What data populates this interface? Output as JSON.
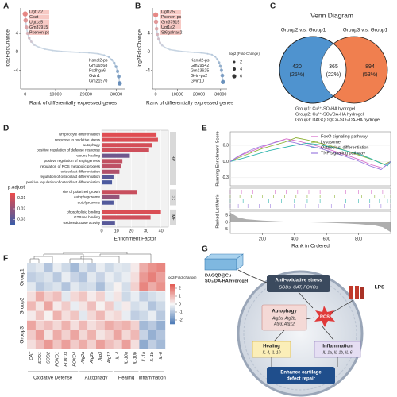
{
  "panel_labels": [
    "A",
    "B",
    "C",
    "D",
    "E",
    "F",
    "G"
  ],
  "chart_data": [
    {
      "type": "scatter",
      "x_label": "Rank of differentially expressed genes",
      "y_label": "log2FoldChange",
      "x": [
        0,
        150,
        400,
        800,
        1300,
        2000,
        3000,
        4500,
        6500,
        9000,
        12000,
        15000,
        18000,
        21000,
        24000,
        26000,
        27500,
        28500,
        29300,
        29900,
        30400,
        30800,
        31100
      ],
      "values": [
        8.2,
        6.8,
        5.3,
        4.0,
        3.0,
        2.2,
        1.5,
        1.0,
        0.6,
        0.3,
        0.1,
        0,
        -0.1,
        -0.2,
        -0.4,
        -0.7,
        -1.1,
        -1.7,
        -2.4,
        -3.2,
        -4.2,
        -5.3,
        -6.8
      ],
      "xlim": [
        -1500,
        33000
      ],
      "ylim": [
        -8,
        9.5
      ],
      "xticks": [
        0,
        10000,
        20000,
        30000
      ],
      "yticks": [
        -4,
        0,
        4
      ],
      "color_high": "#e8605a",
      "color_mid": "#c9d6e3",
      "color_low": "#3d6fa8",
      "labels_top": [
        "Ugt1a2",
        "Gcat",
        "Ugt1a5",
        "Gm37915",
        "Psenen-ps"
      ],
      "labels_bottom": [
        "Kansl2-ps",
        "Gm16568",
        "Pcdhga6",
        "Gvin1",
        "Gm21970"
      ]
    },
    {
      "type": "scatter",
      "x_label": "Rank of differentially expressed genes",
      "y_label": "log2FoldChange",
      "x": [
        0,
        150,
        400,
        800,
        1300,
        2000,
        3000,
        4500,
        6500,
        9000,
        12000,
        15000,
        18000,
        21000,
        24000,
        26000,
        27500,
        28500,
        29300,
        29900,
        30400,
        30800,
        31100
      ],
      "values": [
        8.0,
        6.5,
        5.0,
        3.8,
        2.8,
        2.0,
        1.4,
        0.9,
        0.5,
        0.3,
        0.1,
        0,
        -0.1,
        -0.2,
        -0.4,
        -0.6,
        -1.0,
        -1.6,
        -2.3,
        -3.1,
        -4.0,
        -5.1,
        -6.5
      ],
      "xlim": [
        -1500,
        33000
      ],
      "ylim": [
        -8,
        9.5
      ],
      "xticks": [
        0,
        10000,
        20000,
        30000
      ],
      "yticks": [
        -4,
        0,
        4
      ],
      "color_high": "#e8605a",
      "color_mid": "#c9d6e3",
      "color_low": "#3d6fa8",
      "labels_top": [
        "Ugt1a5",
        "Psenen-ps",
        "Gm37915",
        "Ugt1a2",
        "St6galnac2"
      ],
      "labels_bottom": [
        "Kansl2-ps",
        "Gm29542",
        "Gm13625",
        "Gvin-ps2",
        "Gvin10"
      ],
      "size_legend": {
        "title": "log2 (Fold-Change)",
        "sizes": [
          2,
          4,
          6
        ]
      }
    },
    {
      "type": "bar",
      "orientation": "horizontal",
      "x_label": "Enrichment Factor",
      "xlim": [
        0,
        45
      ],
      "xticks": [
        0,
        10,
        20,
        30,
        40
      ],
      "legend_title": "p.adjust",
      "padjust_lim": [
        0.005,
        0.035
      ],
      "legend_ticks": [
        0.01,
        0.02,
        0.03
      ],
      "color_low_p": "#ec4c4c",
      "color_high_p": "#3a5ca8",
      "highlight_color": "#b3262b",
      "strip_color": "#d9d9d9",
      "groups": [
        {
          "name": "BP",
          "items": [
            {
              "label": "lymphocyte differentiation",
              "value": 37,
              "padjust": 0.007,
              "highlight": false
            },
            {
              "label": "response to oxidative stress",
              "value": 38,
              "padjust": 0.008,
              "highlight": true
            },
            {
              "label": "autophagy",
              "value": 34,
              "padjust": 0.009,
              "highlight": true
            },
            {
              "label": "positive regulation of defense response",
              "value": 32,
              "padjust": 0.01,
              "highlight": false
            },
            {
              "label": "wound healing",
              "value": 19,
              "padjust": 0.026,
              "highlight": true
            },
            {
              "label": "positive regulation of angiogenesis",
              "value": 14,
              "padjust": 0.012,
              "highlight": false
            },
            {
              "label": "regulation of ROS metabolic process",
              "value": 13,
              "padjust": 0.013,
              "highlight": true
            },
            {
              "label": "osteoclast differentiation",
              "value": 12,
              "padjust": 0.015,
              "highlight": true
            },
            {
              "label": "regulation of osteoclast differentiation",
              "value": 8,
              "padjust": 0.03,
              "highlight": false
            },
            {
              "label": "positive regulation of osteoblast differentiation",
              "value": 7,
              "padjust": 0.032,
              "highlight": true
            }
          ]
        },
        {
          "name": "CC",
          "items": [
            {
              "label": "site of polarized growth",
              "value": 24,
              "padjust": 0.011,
              "highlight": false
            },
            {
              "label": "autophagosome",
              "value": 12,
              "padjust": 0.02,
              "highlight": false
            },
            {
              "label": "autolysosome",
              "value": 8,
              "padjust": 0.031,
              "highlight": false
            }
          ]
        },
        {
          "name": "MF",
          "items": [
            {
              "label": "phospholipid binding",
              "value": 40,
              "padjust": 0.008,
              "highlight": false
            },
            {
              "label": "GTPase binding",
              "value": 33,
              "padjust": 0.01,
              "highlight": false
            },
            {
              "label": "oxidoreductase activity",
              "value": 9,
              "padjust": 0.03,
              "highlight": true
            }
          ]
        }
      ]
    },
    {
      "type": "line",
      "y_label": "Running Enrichment Score",
      "y2_label": "Ranked List Metric",
      "x_label": "Rank in Ordered",
      "xlim": [
        0,
        1000
      ],
      "xticks": [
        200,
        400,
        600,
        800
      ],
      "ylim": [
        -0.45,
        0.55
      ],
      "yticks": [
        -0.3,
        {
          "value": 0,
          "label": "0.0"
        },
        0.3
      ],
      "series": [
        {
          "name": "FoxO signaling pathway",
          "color": "#d66bc9",
          "x": [
            0,
            70,
            140,
            210,
            280,
            350,
            420,
            490,
            560,
            640,
            720,
            800,
            880,
            950,
            1000
          ],
          "values": [
            0,
            0.12,
            0.2,
            0.28,
            0.36,
            0.42,
            0.38,
            0.33,
            0.27,
            0.2,
            0.12,
            0.04,
            -0.06,
            -0.12,
            0
          ]
        },
        {
          "name": "Lysosome",
          "color": "#8fb339",
          "x": [
            0,
            60,
            130,
            200,
            270,
            340,
            410,
            480,
            560,
            650,
            740,
            820,
            900,
            960,
            1000
          ],
          "values": [
            0,
            0.08,
            0.16,
            0.24,
            0.3,
            0.36,
            0.44,
            0.4,
            0.34,
            0.27,
            0.18,
            0.1,
            0.02,
            -0.05,
            0
          ]
        },
        {
          "name": "Osteoclast differentiation",
          "color": "#2fb5ad",
          "x": [
            0,
            80,
            160,
            240,
            320,
            400,
            480,
            560,
            640,
            720,
            800,
            870,
            930,
            980,
            1000
          ],
          "values": [
            0,
            0.06,
            0.13,
            0.2,
            0.25,
            0.3,
            0.34,
            0.31,
            0.26,
            0.2,
            0.14,
            0.06,
            -0.02,
            -0.08,
            0
          ]
        },
        {
          "name": "TNF signaling pathway",
          "color": "#9d7de0",
          "x": [
            0,
            50,
            110,
            180,
            250,
            330,
            400,
            470,
            550,
            630,
            710,
            790,
            870,
            940,
            1000
          ],
          "values": [
            0,
            0.1,
            0.19,
            0.27,
            0.33,
            0.39,
            0.35,
            0.3,
            0.25,
            0.18,
            0.1,
            0.02,
            -0.08,
            -0.15,
            0
          ]
        }
      ],
      "metric": {
        "x": [
          0,
          50,
          100,
          200,
          300,
          400,
          500,
          600,
          700,
          800,
          900,
          950,
          1000
        ],
        "values": [
          7,
          3.5,
          2.2,
          1.3,
          0.7,
          0.3,
          0,
          -0.3,
          -0.7,
          -1.3,
          -2.2,
          -3.5,
          -7
        ],
        "ylim": [
          -8,
          8
        ],
        "yticks": [
          -5,
          0,
          5
        ],
        "color": "#8c8c8c"
      }
    },
    {
      "type": "heatmap",
      "legend_title": "log2(Fold-change)",
      "clim": [
        -2.5,
        2.5
      ],
      "cticks": [
        -2,
        -1,
        0,
        1,
        2
      ],
      "color_low": "#4a78b5",
      "color_mid": "#f7f7f7",
      "color_high": "#e25a52",
      "columns": [
        {
          "group": "Oxidative Defense",
          "genes": [
            "CAT",
            "SOD1",
            "SOD2",
            "FOXO1",
            "FOXO3",
            "FOXO4"
          ]
        },
        {
          "group": "Autophagy",
          "genes": [
            "Atg2a",
            "Atg2b",
            "Atg3",
            "Atg12"
          ]
        },
        {
          "group": "Healing",
          "genes": [
            "IL-4",
            "IL-10a",
            "IL-10b"
          ]
        },
        {
          "group": "Inflammation",
          "genes": [
            "IL-1a",
            "IL-1b",
            "IL-6"
          ]
        }
      ],
      "rows": [
        {
          "name": "Group1",
          "values": [
            [
              -0.5,
              -0.3,
              -1,
              -0.2,
              -0.6,
              -1.2,
              -0.4,
              -0.8,
              -0.2,
              -0.6,
              -0.3,
              -0.4,
              0.2,
              1.2,
              1.6,
              1.8
            ],
            [
              -0.8,
              -0.6,
              -0.4,
              -0.9,
              -0.2,
              -0.7,
              -1,
              -0.3,
              -0.7,
              -0.2,
              -0.5,
              -0.2,
              0.4,
              1.5,
              1.9,
              1.4
            ],
            [
              -0.3,
              -0.9,
              -0.6,
              -0.4,
              -1,
              -0.3,
              -0.6,
              -0.5,
              -1.1,
              -0.4,
              0.1,
              -0.5,
              0.6,
              1.8,
              1.2,
              1.6
            ]
          ]
        },
        {
          "name": "Group2",
          "values": [
            [
              0.4,
              1.2,
              0.6,
              0.9,
              -0.3,
              0.5,
              0.8,
              0.2,
              0.6,
              -0.2,
              0.3,
              -0.6,
              -0.2,
              -0.8,
              -0.5,
              -0.3
            ],
            [
              1,
              0.3,
              1.3,
              0.2,
              0.7,
              -0.2,
              0.3,
              0.9,
              0.1,
              0.7,
              -0.3,
              0.2,
              -0.5,
              -0.3,
              -1,
              -0.6
            ],
            [
              0.2,
              0.8,
              0.1,
              1.1,
              0.4,
              0.8,
              -0.3,
              0.5,
              1,
              0.3,
              0.5,
              -0.2,
              -0.8,
              -0.6,
              -0.2,
              -0.9
            ]
          ]
        },
        {
          "name": "Group3",
          "values": [
            [
              1.3,
              0.6,
              0.9,
              0.5,
              1.1,
              0.4,
              1,
              0.4,
              0.7,
              1.2,
              0.9,
              1.1,
              0.6,
              -1.2,
              -0.9,
              -1.4
            ],
            [
              0.7,
              1.4,
              0.3,
              1.2,
              0.6,
              1.3,
              0.5,
              1.1,
              0.3,
              0.6,
              1.3,
              0.5,
              1,
              -0.7,
              -1.4,
              -1
            ],
            [
              0.4,
              0.9,
              1.5,
              0.8,
              1.4,
              0.7,
              1.2,
              0.6,
              1.4,
              0.9,
              0.6,
              1.4,
              0.4,
              -1.5,
              -0.8,
              -1.2
            ]
          ]
        }
      ]
    }
  ],
  "venn": {
    "title": "Venn Diagram",
    "left_label": "Group2 v.s. Group1",
    "right_label": "Group3 v.s. Group1",
    "left_color": "#4f93cf",
    "right_color": "#f07f4f",
    "regions": [
      {
        "count": 420,
        "share": "(25%)"
      },
      {
        "count": 365,
        "share": "(22%)"
      },
      {
        "count": 894,
        "share": "(53%)"
      }
    ],
    "groups": [
      "Group1: Cu²⁺-SO₃HA hydrogel",
      "Group2: Cu²⁺-SO₃/DA-HA hydrogel",
      "Group3: DAGQD@Cu-SO₃/DA-HA hydrogel"
    ]
  },
  "diagram": {
    "hydrogel_lines": [
      "DAGQD@Cu-",
      "SO₃/DA-HA hydrogel"
    ],
    "anti_title": "Anti-oxidative stress",
    "anti_genes": "SODs, CAT, FOXOs",
    "lps": "LPS",
    "ros": "ROS",
    "autophagy_title": "Autophagy",
    "autophagy_genes": [
      "Atg2a, Atg2b,",
      "Atg3, Atg12"
    ],
    "healing_title": "Healing",
    "healing_genes": "IL-4, IL-10",
    "inflammation_title": "Inflammation",
    "inflammation_genes": "IL-1a, IL-1b, IL-6",
    "repair_lines": [
      "Enhance cartilage",
      "defect repair"
    ]
  }
}
